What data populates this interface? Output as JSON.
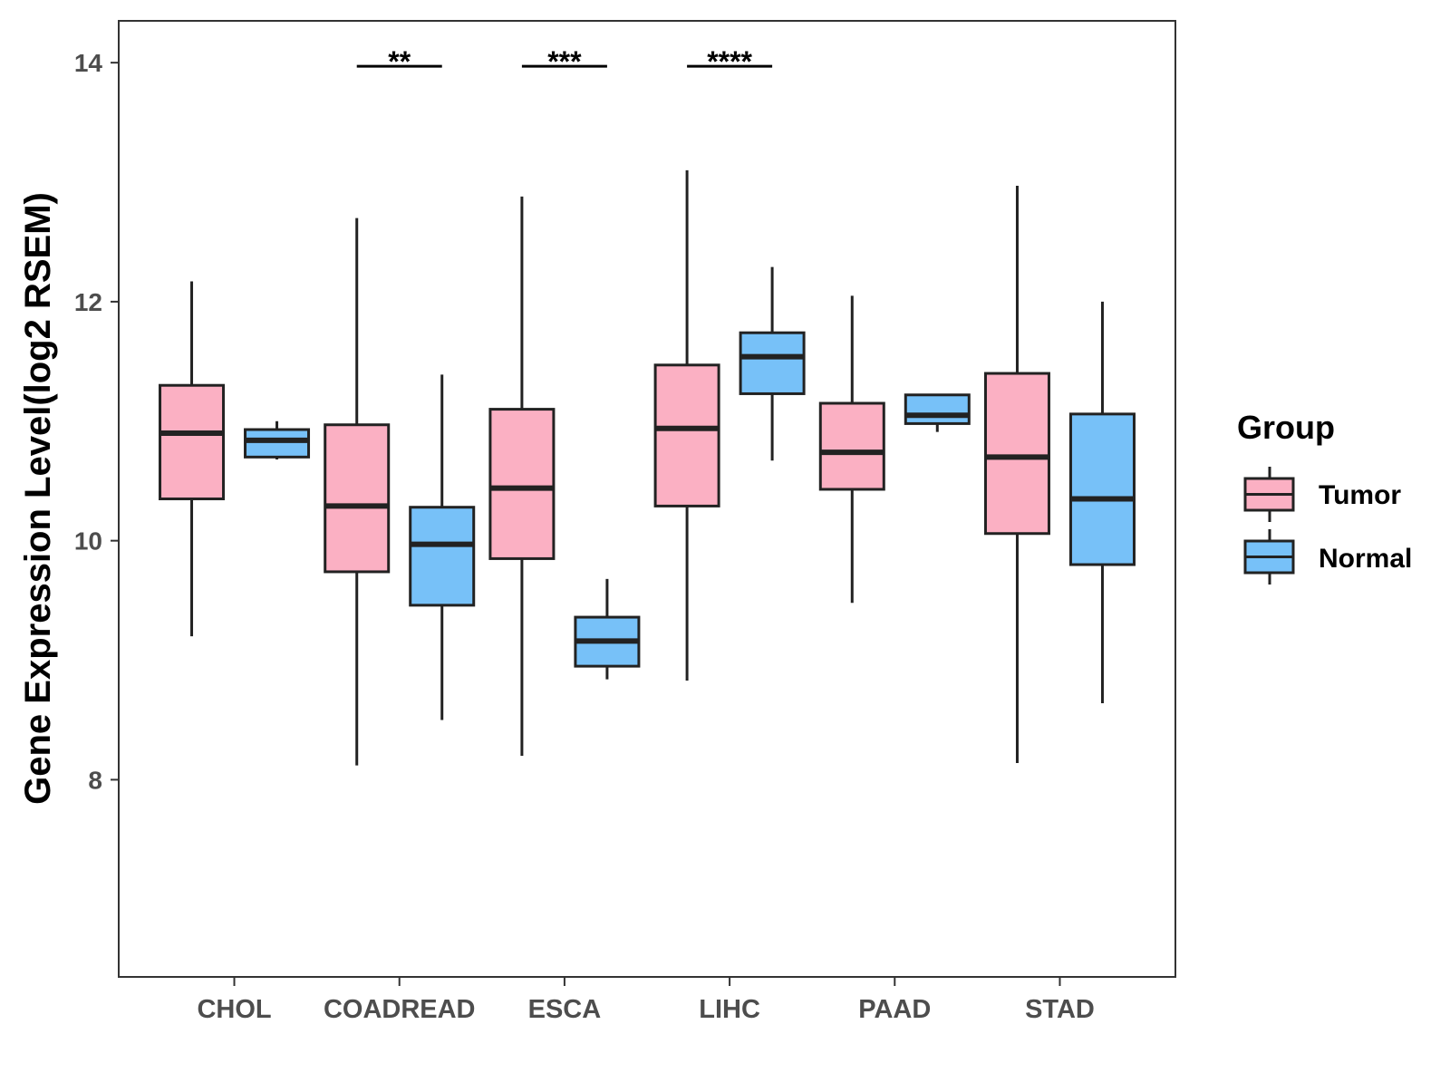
{
  "chart_data": {
    "type": "boxplot",
    "title": "",
    "xlabel": "",
    "ylabel": "Gene Expression Level(log2 RSEM)",
    "ylim": [
      6.35,
      14.35
    ],
    "yticks": [
      8,
      10,
      12,
      14
    ],
    "grid": false,
    "categories": [
      "CHOL",
      "COADREAD",
      "ESCA",
      "LIHC",
      "PAAD",
      "STAD"
    ],
    "legend": {
      "title": "Group",
      "position": "right",
      "entries": [
        {
          "name": "Tumor",
          "color": "#FBB0C3"
        },
        {
          "name": "Normal",
          "color": "#77C1F8"
        }
      ]
    },
    "series": [
      {
        "name": "Tumor",
        "color": "#FBB0C3",
        "boxes": [
          {
            "category": "CHOL",
            "min": 9.2,
            "q1": 10.35,
            "median": 10.9,
            "q3": 11.3,
            "max": 12.17
          },
          {
            "category": "COADREAD",
            "min": 8.12,
            "q1": 9.74,
            "median": 10.29,
            "q3": 10.97,
            "max": 12.7
          },
          {
            "category": "ESCA",
            "min": 8.2,
            "q1": 9.85,
            "median": 10.44,
            "q3": 11.1,
            "max": 12.88
          },
          {
            "category": "LIHC",
            "min": 8.83,
            "q1": 10.29,
            "median": 10.94,
            "q3": 11.47,
            "max": 13.1
          },
          {
            "category": "PAAD",
            "min": 9.48,
            "q1": 10.43,
            "median": 10.74,
            "q3": 11.15,
            "max": 12.05
          },
          {
            "category": "STAD",
            "min": 8.14,
            "q1": 10.06,
            "median": 10.7,
            "q3": 11.4,
            "max": 12.97
          }
        ]
      },
      {
        "name": "Normal",
        "color": "#77C1F8",
        "boxes": [
          {
            "category": "CHOL",
            "min": 10.68,
            "q1": 10.7,
            "median": 10.84,
            "q3": 10.93,
            "max": 11.0
          },
          {
            "category": "COADREAD",
            "min": 8.5,
            "q1": 9.46,
            "median": 9.97,
            "q3": 10.28,
            "max": 11.39
          },
          {
            "category": "ESCA",
            "min": 8.84,
            "q1": 8.95,
            "median": 9.16,
            "q3": 9.36,
            "max": 9.68
          },
          {
            "category": "LIHC",
            "min": 10.67,
            "q1": 11.23,
            "median": 11.54,
            "q3": 11.74,
            "max": 12.29
          },
          {
            "category": "PAAD",
            "min": 10.91,
            "q1": 10.98,
            "median": 11.05,
            "q3": 11.22,
            "max": 11.22
          },
          {
            "category": "STAD",
            "min": 8.64,
            "q1": 9.8,
            "median": 10.35,
            "q3": 11.06,
            "max": 12.0
          }
        ]
      }
    ],
    "annotations": [
      {
        "category": "COADREAD",
        "label": "**",
        "y": 13.97
      },
      {
        "category": "ESCA",
        "label": "***",
        "y": 13.97
      },
      {
        "category": "LIHC",
        "label": "****",
        "y": 13.97
      }
    ]
  }
}
